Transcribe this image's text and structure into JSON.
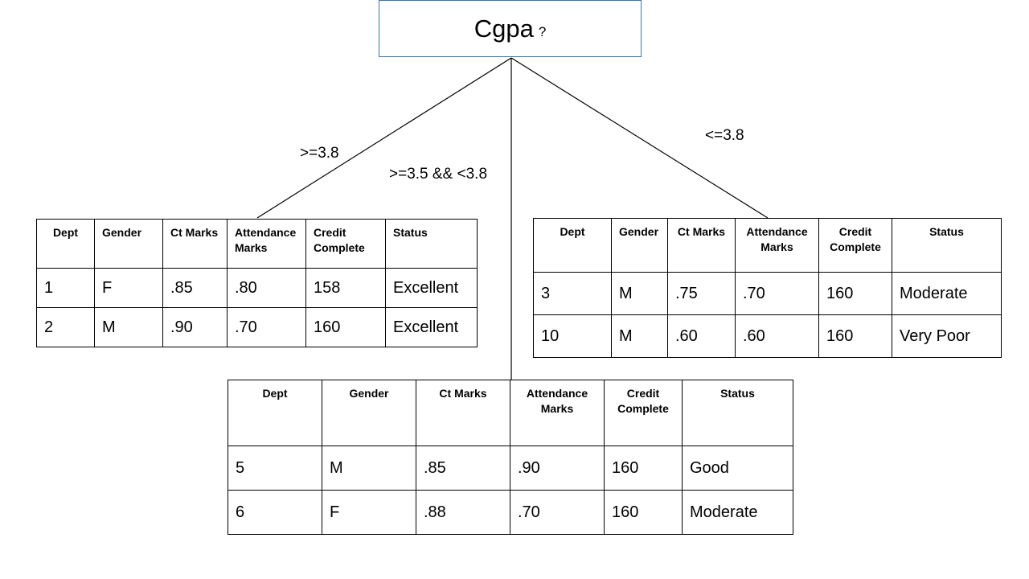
{
  "root": {
    "label": "Cgpa",
    "question_mark": "?"
  },
  "branches": [
    {
      "condition": ">=3.8",
      "table": {
        "headers": [
          "Dept",
          "Gender",
          "Ct Marks",
          "Attendance Marks",
          "Credit Complete",
          "Status"
        ],
        "rows": [
          [
            "1",
            "F",
            ".85",
            ".80",
            "158",
            "Excellent"
          ],
          [
            "2",
            "M",
            ".90",
            ".70",
            "160",
            "Excellent"
          ]
        ]
      }
    },
    {
      "condition": ">=3.5 && <3.8",
      "table": {
        "headers": [
          "Dept",
          "Gender",
          "Ct Marks",
          "Attendance Marks",
          "Credit Complete",
          "Status"
        ],
        "rows": [
          [
            "5",
            "M",
            ".85",
            ".90",
            "160",
            "Good"
          ],
          [
            "6",
            "F",
            ".88",
            ".70",
            "160",
            "Moderate"
          ]
        ]
      }
    },
    {
      "condition": "<=3.8",
      "table": {
        "headers": [
          "Dept",
          "Gender",
          "Ct Marks",
          "Attendance Marks",
          "Credit Complete",
          "Status"
        ],
        "rows": [
          [
            "3",
            "M",
            ".75",
            ".70",
            "160",
            "Moderate"
          ],
          [
            "10",
            "M",
            ".60",
            ".60",
            "160",
            "Very Poor"
          ]
        ]
      }
    }
  ]
}
